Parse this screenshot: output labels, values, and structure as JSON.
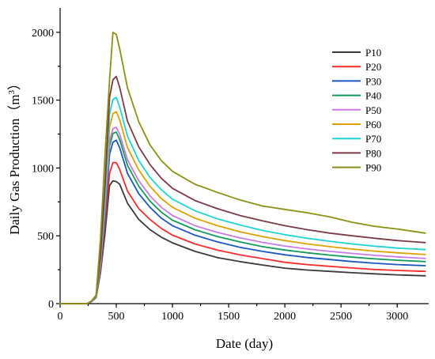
{
  "chart_data": {
    "type": "line",
    "xlabel": "Date (day)",
    "ylabel": "Daily Gas Production",
    "ylabel_unit_base": "m",
    "ylabel_unit_exp": "3",
    "xlim": [
      0,
      3280
    ],
    "ylim": [
      0,
      2180
    ],
    "xticks": [
      0,
      500,
      1000,
      1500,
      2000,
      2500,
      3000
    ],
    "yticks": [
      0,
      500,
      1000,
      1500,
      2000
    ],
    "grid": false,
    "legend_position": "right",
    "x": [
      0,
      240,
      280,
      320,
      360,
      400,
      440,
      470,
      500,
      530,
      600,
      700,
      800,
      900,
      1000,
      1200,
      1400,
      1600,
      1800,
      2000,
      2200,
      2400,
      2600,
      2800,
      3000,
      3250
    ],
    "series": [
      {
        "name": "P10",
        "color": "#3a3a3a",
        "values": [
          0,
          0,
          15,
          45,
          230,
          520,
          870,
          905,
          900,
          880,
          740,
          620,
          545,
          490,
          448,
          385,
          340,
          310,
          285,
          262,
          248,
          238,
          228,
          220,
          212,
          205
        ]
      },
      {
        "name": "P20",
        "color": "#ff2a2a",
        "values": [
          0,
          0,
          16,
          48,
          250,
          590,
          960,
          1040,
          1040,
          990,
          830,
          700,
          620,
          555,
          505,
          440,
          395,
          360,
          332,
          305,
          288,
          275,
          263,
          252,
          245,
          238
        ]
      },
      {
        "name": "P30",
        "color": "#1a56c4",
        "values": [
          0,
          0,
          16,
          50,
          270,
          640,
          1100,
          1190,
          1205,
          1150,
          960,
          810,
          710,
          630,
          575,
          505,
          455,
          415,
          385,
          360,
          340,
          325,
          310,
          298,
          288,
          280
        ]
      },
      {
        "name": "P40",
        "color": "#139a5a",
        "values": [
          0,
          0,
          17,
          52,
          285,
          680,
          1160,
          1255,
          1265,
          1210,
          1020,
          865,
          755,
          675,
          615,
          545,
          495,
          455,
          420,
          395,
          375,
          358,
          343,
          330,
          320,
          310
        ]
      },
      {
        "name": "P50",
        "color": "#c97ae8",
        "values": [
          0,
          0,
          17,
          53,
          295,
          710,
          1200,
          1290,
          1300,
          1250,
          1060,
          905,
          795,
          710,
          650,
          575,
          525,
          485,
          452,
          425,
          403,
          385,
          370,
          356,
          345,
          333
        ]
      },
      {
        "name": "P60",
        "color": "#e0a000",
        "values": [
          0,
          0,
          18,
          55,
          310,
          760,
          1300,
          1400,
          1415,
          1355,
          1150,
          985,
          865,
          775,
          710,
          630,
          575,
          530,
          495,
          465,
          440,
          420,
          402,
          387,
          375,
          362
        ]
      },
      {
        "name": "P70",
        "color": "#1fd3d3",
        "values": [
          0,
          0,
          18,
          57,
          330,
          800,
          1400,
          1505,
          1520,
          1450,
          1235,
          1055,
          930,
          840,
          770,
          685,
          625,
          580,
          540,
          508,
          482,
          460,
          440,
          424,
          410,
          398
        ]
      },
      {
        "name": "P80",
        "color": "#7a3a45",
        "values": [
          0,
          0,
          19,
          60,
          360,
          880,
          1520,
          1650,
          1675,
          1595,
          1345,
          1155,
          1025,
          925,
          850,
          760,
          700,
          650,
          610,
          575,
          545,
          520,
          500,
          482,
          465,
          450
        ]
      },
      {
        "name": "P90",
        "color": "#8e8e14",
        "values": [
          0,
          0,
          20,
          62,
          480,
          1100,
          1650,
          2000,
          1985,
          1880,
          1590,
          1340,
          1170,
          1055,
          975,
          880,
          820,
          765,
          720,
          695,
          670,
          640,
          600,
          570,
          550,
          520
        ]
      }
    ]
  }
}
